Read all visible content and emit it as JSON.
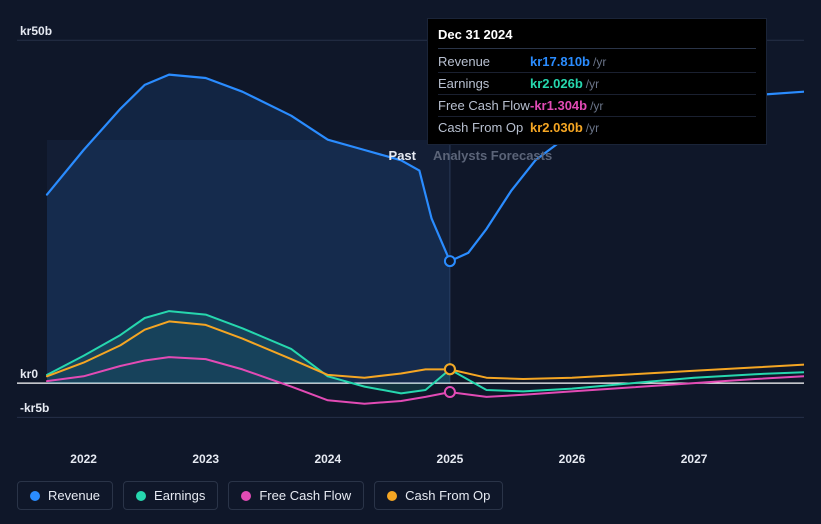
{
  "chart": {
    "type": "line-area",
    "background_color": "#0f1729",
    "zero_line_color": "#ffffff",
    "grid_color": "#263048",
    "past_shade_color": "rgba(30,50,90,0.25)",
    "past_divider_color": "#2a3a58",
    "y_axis": {
      "min": -8,
      "max": 55,
      "ticks": [
        {
          "value": 50,
          "label": "kr50b"
        },
        {
          "value": 0,
          "label": "kr0"
        },
        {
          "value": -5,
          "label": "-kr5b"
        }
      ]
    },
    "x_axis": {
      "min": 2021.7,
      "max": 2027.9,
      "ticks": [
        2022,
        2023,
        2024,
        2025,
        2026,
        2027
      ]
    },
    "sections": {
      "past_label": "Past",
      "forecast_label": "Analysts Forecasts",
      "split_x": 2025.0
    },
    "marker_x": 2025.0,
    "series": [
      {
        "key": "revenue",
        "label": "Revenue",
        "color": "#2a8cff",
        "fill": "rgba(42,140,255,0.12)",
        "line_width": 2.2,
        "area_until_split": true,
        "points": [
          [
            2021.7,
            27.5
          ],
          [
            2022.0,
            34.0
          ],
          [
            2022.3,
            40.0
          ],
          [
            2022.5,
            43.5
          ],
          [
            2022.7,
            45.0
          ],
          [
            2023.0,
            44.5
          ],
          [
            2023.3,
            42.5
          ],
          [
            2023.7,
            39.0
          ],
          [
            2024.0,
            35.5
          ],
          [
            2024.3,
            34.0
          ],
          [
            2024.6,
            32.5
          ],
          [
            2024.75,
            31.0
          ],
          [
            2024.85,
            24.0
          ],
          [
            2025.0,
            17.8
          ],
          [
            2025.15,
            19.0
          ],
          [
            2025.3,
            22.5
          ],
          [
            2025.5,
            28.0
          ],
          [
            2025.7,
            32.5
          ],
          [
            2026.0,
            36.5
          ],
          [
            2026.3,
            38.5
          ],
          [
            2026.7,
            40.0
          ],
          [
            2027.0,
            41.0
          ],
          [
            2027.5,
            42.0
          ],
          [
            2027.9,
            42.5
          ]
        ],
        "marker_y": 17.8
      },
      {
        "key": "earnings",
        "label": "Earnings",
        "color": "#26d7ae",
        "fill": "rgba(38,215,174,0.14)",
        "line_width": 2,
        "area_until_split": true,
        "points": [
          [
            2021.7,
            1.2
          ],
          [
            2022.0,
            4.0
          ],
          [
            2022.3,
            7.0
          ],
          [
            2022.5,
            9.5
          ],
          [
            2022.7,
            10.5
          ],
          [
            2023.0,
            10.0
          ],
          [
            2023.3,
            8.0
          ],
          [
            2023.7,
            5.0
          ],
          [
            2024.0,
            1.0
          ],
          [
            2024.3,
            -0.5
          ],
          [
            2024.6,
            -1.5
          ],
          [
            2024.8,
            -1.0
          ],
          [
            2025.0,
            2.0
          ],
          [
            2025.3,
            -1.0
          ],
          [
            2025.6,
            -1.2
          ],
          [
            2026.0,
            -0.8
          ],
          [
            2026.5,
            0.0
          ],
          [
            2027.0,
            0.8
          ],
          [
            2027.5,
            1.3
          ],
          [
            2027.9,
            1.6
          ]
        ],
        "marker_y": 2.03
      },
      {
        "key": "fcf",
        "label": "Free Cash Flow",
        "color": "#e24bb5",
        "fill": "none",
        "line_width": 2,
        "area_until_split": false,
        "points": [
          [
            2021.7,
            0.3
          ],
          [
            2022.0,
            1.0
          ],
          [
            2022.3,
            2.5
          ],
          [
            2022.5,
            3.3
          ],
          [
            2022.7,
            3.8
          ],
          [
            2023.0,
            3.5
          ],
          [
            2023.3,
            2.0
          ],
          [
            2023.7,
            -0.5
          ],
          [
            2024.0,
            -2.5
          ],
          [
            2024.3,
            -3.0
          ],
          [
            2024.6,
            -2.6
          ],
          [
            2024.8,
            -2.0
          ],
          [
            2025.0,
            -1.3
          ],
          [
            2025.3,
            -2.0
          ],
          [
            2025.6,
            -1.7
          ],
          [
            2026.0,
            -1.2
          ],
          [
            2026.5,
            -0.6
          ],
          [
            2027.0,
            0.0
          ],
          [
            2027.5,
            0.6
          ],
          [
            2027.9,
            1.0
          ]
        ],
        "marker_y": -1.3
      },
      {
        "key": "cfo",
        "label": "Cash From Op",
        "color": "#f5a623",
        "fill": "none",
        "line_width": 2,
        "area_until_split": false,
        "points": [
          [
            2021.7,
            1.0
          ],
          [
            2022.0,
            3.0
          ],
          [
            2022.3,
            5.5
          ],
          [
            2022.5,
            7.8
          ],
          [
            2022.7,
            9.0
          ],
          [
            2023.0,
            8.5
          ],
          [
            2023.3,
            6.5
          ],
          [
            2023.7,
            3.5
          ],
          [
            2024.0,
            1.2
          ],
          [
            2024.3,
            0.8
          ],
          [
            2024.6,
            1.4
          ],
          [
            2024.8,
            2.0
          ],
          [
            2025.0,
            2.0
          ],
          [
            2025.3,
            0.8
          ],
          [
            2025.6,
            0.6
          ],
          [
            2026.0,
            0.8
          ],
          [
            2026.5,
            1.3
          ],
          [
            2027.0,
            1.8
          ],
          [
            2027.5,
            2.3
          ],
          [
            2027.9,
            2.7
          ]
        ],
        "marker_y": 2.03
      }
    ]
  },
  "tooltip": {
    "title": "Dec 31 2024",
    "rows": [
      {
        "label": "Revenue",
        "value": "kr17.810b",
        "unit": "/yr",
        "color": "#2a8cff"
      },
      {
        "label": "Earnings",
        "value": "kr2.026b",
        "unit": "/yr",
        "color": "#26d7ae"
      },
      {
        "label": "Free Cash Flow",
        "value": "-kr1.304b",
        "unit": "/yr",
        "color": "#e24bb5"
      },
      {
        "label": "Cash From Op",
        "value": "kr2.030b",
        "unit": "/yr",
        "color": "#f5a623"
      }
    ]
  },
  "legend": [
    {
      "key": "revenue",
      "label": "Revenue",
      "color": "#2a8cff"
    },
    {
      "key": "earnings",
      "label": "Earnings",
      "color": "#26d7ae"
    },
    {
      "key": "fcf",
      "label": "Free Cash Flow",
      "color": "#e24bb5"
    },
    {
      "key": "cfo",
      "label": "Cash From Op",
      "color": "#f5a623"
    }
  ]
}
